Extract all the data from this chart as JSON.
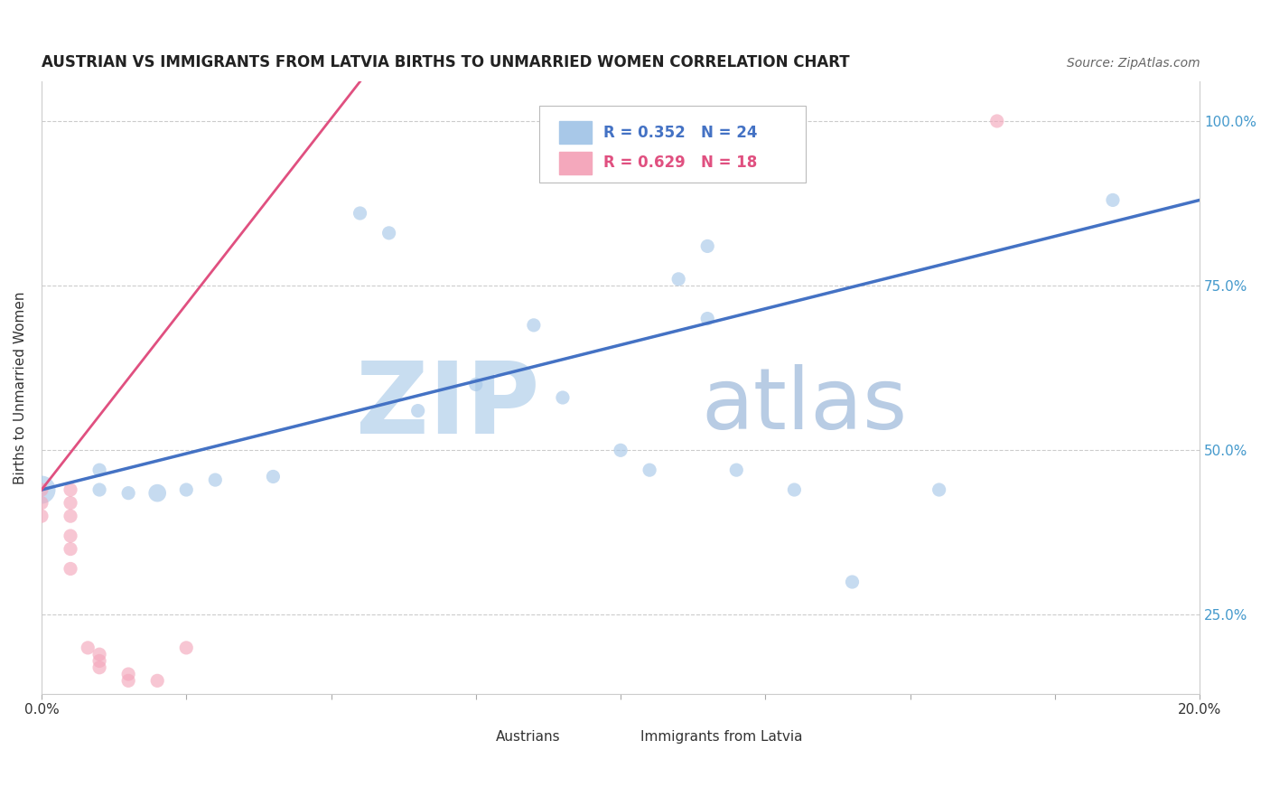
{
  "title": "AUSTRIAN VS IMMIGRANTS FROM LATVIA BIRTHS TO UNMARRIED WOMEN CORRELATION CHART",
  "source": "Source: ZipAtlas.com",
  "ylabel": "Births to Unmarried Women",
  "xlim": [
    0.0,
    0.2
  ],
  "ylim": [
    0.13,
    1.06
  ],
  "xticks": [
    0.0,
    0.025,
    0.05,
    0.075,
    0.1,
    0.125,
    0.15,
    0.175,
    0.2
  ],
  "xtick_labels": [
    "0.0%",
    "",
    "",
    "",
    "",
    "",
    "",
    "",
    "20.0%"
  ],
  "yticks": [
    0.25,
    0.5,
    0.75,
    1.0
  ],
  "ytick_labels": [
    "25.0%",
    "50.0%",
    "75.0%",
    "100.0%"
  ],
  "legend_r1": "R = 0.352",
  "legend_n1": "N = 24",
  "legend_r2": "R = 0.629",
  "legend_n2": "N = 18",
  "blue_color": "#a8c8e8",
  "pink_color": "#f4a8bc",
  "blue_line_color": "#4472c4",
  "pink_line_color": "#e05080",
  "watermark_zip": "ZIP",
  "watermark_atlas": "atlas",
  "watermark_color_zip": "#c8ddf0",
  "watermark_color_atlas": "#b8cce4",
  "austrians_x": [
    0.0,
    0.01,
    0.01,
    0.015,
    0.02,
    0.025,
    0.03,
    0.04,
    0.055,
    0.06,
    0.065,
    0.075,
    0.085,
    0.09,
    0.1,
    0.105,
    0.11,
    0.115,
    0.115,
    0.12,
    0.13,
    0.14,
    0.155,
    0.185
  ],
  "austrians_y": [
    0.44,
    0.44,
    0.47,
    0.435,
    0.435,
    0.44,
    0.455,
    0.46,
    0.86,
    0.83,
    0.56,
    0.6,
    0.69,
    0.58,
    0.5,
    0.47,
    0.76,
    0.81,
    0.7,
    0.47,
    0.44,
    0.3,
    0.44,
    0.88
  ],
  "austrians_size": [
    500,
    120,
    120,
    120,
    200,
    120,
    120,
    120,
    120,
    120,
    120,
    120,
    120,
    120,
    120,
    120,
    120,
    120,
    120,
    120,
    120,
    120,
    120,
    120
  ],
  "latvia_x": [
    0.0,
    0.0,
    0.0,
    0.005,
    0.005,
    0.005,
    0.005,
    0.005,
    0.005,
    0.008,
    0.01,
    0.01,
    0.01,
    0.015,
    0.015,
    0.02,
    0.025,
    0.165
  ],
  "latvia_y": [
    0.44,
    0.42,
    0.4,
    0.44,
    0.42,
    0.4,
    0.37,
    0.35,
    0.32,
    0.2,
    0.19,
    0.18,
    0.17,
    0.16,
    0.15,
    0.15,
    0.2,
    1.0
  ],
  "latvia_size": [
    120,
    120,
    120,
    120,
    120,
    120,
    120,
    120,
    120,
    120,
    120,
    120,
    120,
    120,
    120,
    120,
    120,
    120
  ],
  "blue_trend_x0": 0.0,
  "blue_trend_y0": 0.44,
  "blue_trend_x1": 0.2,
  "blue_trend_y1": 0.88,
  "pink_trend_x0": 0.0,
  "pink_trend_y0": 0.44,
  "pink_trend_x1": 0.055,
  "pink_trend_y1": 1.06
}
